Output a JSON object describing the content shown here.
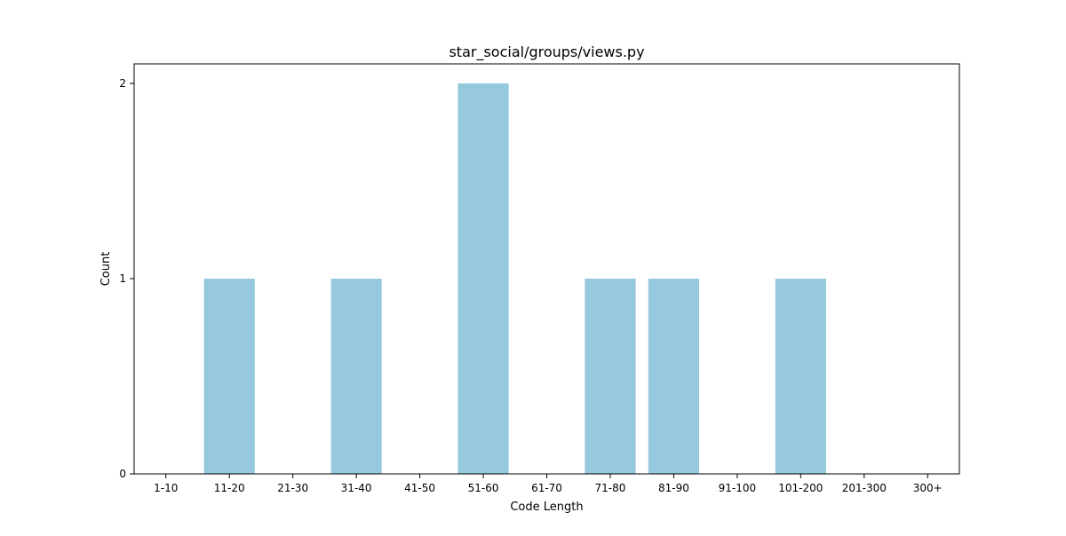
{
  "chart_data": {
    "type": "bar",
    "title": "star_social/groups/views.py",
    "xlabel": "Code Length",
    "ylabel": "Count",
    "categories": [
      "1-10",
      "11-20",
      "21-30",
      "31-40",
      "41-50",
      "51-60",
      "61-70",
      "71-80",
      "81-90",
      "91-100",
      "101-200",
      "201-300",
      "300+"
    ],
    "values": [
      0,
      1,
      0,
      1,
      0,
      2,
      0,
      1,
      1,
      0,
      1,
      0,
      0
    ],
    "yticks": [
      "0",
      "1",
      "2"
    ],
    "ylim": [
      0,
      2.1
    ],
    "grid": false,
    "bar_color": "#96c9dd"
  }
}
